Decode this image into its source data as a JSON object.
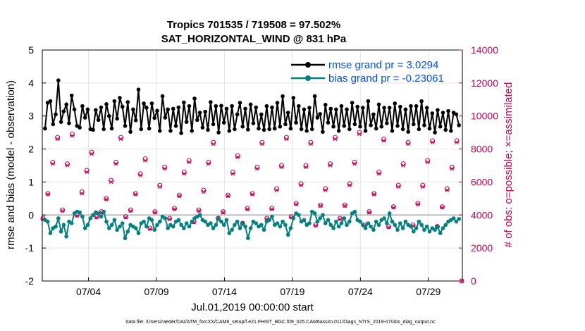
{
  "chart_data": {
    "type": "line",
    "title_line1": "Tropics 701535 / 719508 = 97.502%",
    "title_line2": "SAT_HORIZONTAL_WIND @ 831 hPa",
    "xlabel": "Jul.01,2019 00:00:00 start",
    "ylabel": "rmse and bias (model - observation)",
    "ylabel_right": "# of obs: o=possible; ×=assimilated",
    "ylim": [
      -2,
      5
    ],
    "ylim_right": [
      0,
      14000
    ],
    "xlim": [
      0.6,
      31.5
    ],
    "yticks": [
      -2,
      -1,
      0,
      1,
      2,
      3,
      4,
      5
    ],
    "yticks_right": [
      0,
      2000,
      4000,
      6000,
      8000,
      10000,
      12000,
      14000
    ],
    "xtick_values": [
      4,
      9,
      14,
      19,
      24,
      29
    ],
    "xtick_labels": [
      "07/04",
      "07/09",
      "07/14",
      "07/19",
      "07/24",
      "07/29"
    ],
    "grid": true,
    "legend_position": "top-right",
    "footnote": "data file: /Users/raeder/DAI/ATM_forcXX/CAM6_setup/f.e21.FHIST_BGC.f09_025.CAM6assim.011/Diags_NTrS_2019-07/obs_diag_output.nc",
    "colors": {
      "rmse": "#000000",
      "bias": "#00807f",
      "obs": "#c8004f",
      "legend_text": "#0050e6",
      "zero_line": "#aaaaaa"
    },
    "series": [
      {
        "name": "rmse grand pr = 3.0294",
        "key": "rmse",
        "values": [
          2.62,
          3.4,
          3.45,
          2.75,
          3.05,
          4.08,
          2.82,
          3.14,
          3.35,
          2.78,
          3.62,
          3.2,
          2.7,
          2.65,
          3.3,
          2.95,
          3.2,
          2.6,
          2.58,
          3.18,
          2.88,
          3.26,
          2.6,
          3.36,
          3.0,
          2.62,
          3.45,
          2.92,
          3.55,
          3.28,
          2.7,
          3.42,
          2.52,
          3.2,
          2.87,
          3.8,
          2.6,
          3.38,
          3.25,
          2.62,
          3.38,
          2.94,
          3.16,
          2.55,
          3.6,
          2.95,
          3.2,
          2.55,
          3.22,
          2.7,
          3.26,
          2.48,
          3.41,
          2.82,
          3.3,
          2.55,
          3.53,
          2.88,
          3.1,
          2.65,
          3.13,
          2.58,
          3.42,
          2.75,
          3.3,
          2.5,
          3.31,
          2.8,
          3.22,
          2.55,
          3.3,
          2.6,
          3.05,
          3.4,
          2.68,
          3.22,
          2.59,
          3.35,
          2.78,
          3.26,
          2.62,
          3.05,
          2.58,
          3.3,
          2.6,
          3.26,
          2.62,
          3.4,
          2.68,
          3.6,
          2.75,
          3.1,
          2.62,
          3.55,
          2.8,
          3.3,
          2.6,
          3.2,
          2.55,
          3.25,
          2.6,
          3.6,
          2.95,
          3.06,
          2.52,
          3.34,
          2.8,
          3.22,
          2.68,
          3.2,
          2.55,
          3.3,
          2.7,
          3.2,
          2.6,
          3.4,
          2.75,
          3.28,
          2.68,
          3.25,
          2.55,
          3.45,
          2.72,
          3.05,
          2.62,
          3.35,
          2.68,
          3.25,
          2.78,
          3.25,
          2.55,
          3.38,
          2.7,
          3.28,
          2.6,
          3.2,
          2.52,
          3.3,
          2.75,
          3.3,
          2.6,
          3.45,
          2.72,
          3.25,
          2.62,
          3.08,
          2.5,
          3.18,
          2.68,
          3.1,
          2.58,
          3.15,
          2.55,
          3.1,
          3.05,
          2.72
        ]
      },
      {
        "name": "bias grand pr = -0.23061",
        "key": "bias",
        "values": [
          -0.15,
          -0.2,
          -0.55,
          -0.4,
          -0.35,
          -0.1,
          -0.5,
          -0.3,
          -0.65,
          -0.2,
          -0.25,
          0.05,
          0.1,
          0.08,
          -0.05,
          -0.4,
          -0.3,
          -0.1,
          0.0,
          0.08,
          0.05,
          -0.05,
          0.1,
          -0.2,
          -0.4,
          -0.3,
          -0.15,
          -0.45,
          -0.35,
          -0.25,
          -0.7,
          -0.5,
          -0.3,
          -0.35,
          -0.4,
          -0.55,
          -0.25,
          -0.2,
          -0.35,
          -0.1,
          -0.15,
          -0.45,
          -0.3,
          -0.2,
          -0.05,
          -0.1,
          -0.4,
          -0.3,
          -0.35,
          -0.2,
          -0.15,
          -0.3,
          -0.4,
          -0.25,
          -0.35,
          -0.2,
          -0.1,
          -0.05,
          0.0,
          -0.15,
          -0.2,
          -0.3,
          -0.25,
          -0.4,
          -0.3,
          -0.1,
          -0.2,
          -0.3,
          -0.15,
          -0.55,
          -0.45,
          -0.3,
          -0.2,
          -0.4,
          -0.25,
          -0.35,
          -0.7,
          -0.4,
          -0.2,
          -0.25,
          -0.35,
          -0.3,
          -0.45,
          -0.2,
          -0.15,
          -0.05,
          -0.3,
          -0.25,
          -0.35,
          -0.2,
          -0.3,
          -0.6,
          -0.4,
          -0.1,
          0.05,
          0.0,
          -0.2,
          -0.15,
          -0.3,
          -0.25,
          0.1,
          0.05,
          -0.2,
          -0.1,
          0.0,
          -0.25,
          -0.15,
          -0.3,
          -0.4,
          -0.2,
          -0.35,
          -0.25,
          -0.1,
          -0.3,
          -0.2,
          0.05,
          0.1,
          -0.15,
          -0.2,
          -0.3,
          -0.4,
          -0.25,
          -0.35,
          -0.45,
          -0.2,
          -0.3,
          -0.15,
          -0.1,
          -0.25,
          0.05,
          -0.2,
          -0.3,
          -0.45,
          -0.25,
          -0.4,
          -0.2,
          -0.3,
          -0.35,
          -0.5,
          -0.4,
          -0.2,
          -0.3,
          -0.45,
          -0.35,
          -0.5,
          -0.4,
          -0.45,
          -0.35,
          -0.55,
          -0.4,
          -0.3,
          -0.2,
          -0.15,
          -0.1,
          -0.2,
          -0.12
        ]
      },
      {
        "name": "possible obs",
        "key": "possible",
        "values": [
          3800,
          5300,
          7200,
          8700,
          4300,
          7100,
          8900,
          4000,
          5400,
          6700,
          7800,
          3900,
          4200,
          5000,
          6100,
          7200,
          8700,
          3900,
          4300,
          5300,
          6500,
          7400,
          3200,
          4200,
          5800,
          6900,
          3800,
          4400,
          5200,
          6600,
          7300,
          3600,
          4300,
          5500,
          7200,
          8400,
          3800,
          4200,
          5200,
          6600,
          7600,
          3500,
          4400,
          5300,
          6900,
          8400,
          3800,
          4400,
          5600,
          7000,
          8700,
          3900,
          4700,
          5900,
          7000,
          8400,
          3400,
          4600,
          5600,
          7100,
          8700,
          3800,
          4600,
          5900,
          7200,
          9000,
          3400,
          4200,
          5300,
          6600,
          8600,
          3300,
          4500,
          5800,
          7100,
          8400,
          3400,
          4700,
          5800,
          7300,
          8500,
          3300,
          4500,
          5600,
          6900,
          8500,
          0
        ]
      },
      {
        "name": "assimilated obs",
        "key": "assimilated",
        "values": [
          3750,
          5250,
          7100,
          8600,
          4250,
          7000,
          8800,
          3950,
          5300,
          6600,
          7700,
          3850,
          4150,
          4950,
          6000,
          7100,
          8600,
          3850,
          4250,
          5250,
          6400,
          7300,
          3150,
          4150,
          5700,
          6800,
          3750,
          4350,
          5150,
          6500,
          7200,
          3550,
          4250,
          5400,
          7100,
          8300,
          3750,
          4150,
          5150,
          6500,
          7500,
          3450,
          4350,
          5250,
          6800,
          8300,
          3750,
          4350,
          5500,
          6900,
          8600,
          3850,
          4650,
          5800,
          6900,
          8300,
          3350,
          4550,
          5500,
          7000,
          8600,
          3750,
          4550,
          5800,
          7100,
          8900,
          3350,
          4150,
          5250,
          6500,
          8500,
          3250,
          4450,
          5700,
          7000,
          8300,
          3350,
          4650,
          5700,
          7200,
          8400,
          3250,
          4450,
          5500,
          6800,
          8400,
          0
        ]
      }
    ]
  }
}
